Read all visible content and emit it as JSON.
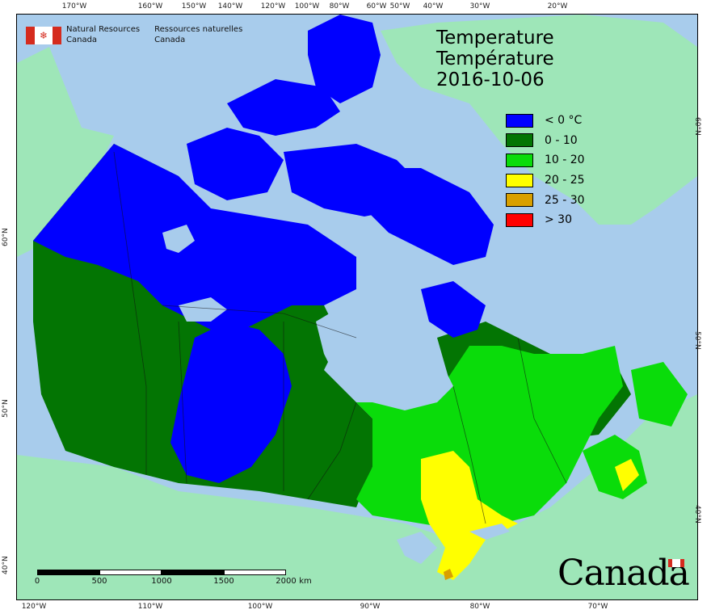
{
  "map": {
    "title_en": "Temperature",
    "title_fr": "Température",
    "date": "2016-10-06"
  },
  "agency": {
    "name_en_line1": "Natural Resources",
    "name_en_line2": "Canada",
    "name_fr_line1": "Ressources naturelles",
    "name_fr_line2": "Canada",
    "flag_icon": "canada-flag-icon"
  },
  "wordmark": {
    "text": "Canada",
    "flag_icon": "canada-flag-icon"
  },
  "legend": [
    {
      "label": "< 0 °C",
      "color": "#0000ff"
    },
    {
      "label": "0 - 10",
      "color": "#037503"
    },
    {
      "label": "10 - 20",
      "color": "#0adc0a"
    },
    {
      "label": "20 - 25",
      "color": "#ffff00"
    },
    {
      "label": "25 - 30",
      "color": "#d9a000"
    },
    {
      "label": "> 30",
      "color": "#ff0000"
    }
  ],
  "graticule": {
    "top": [
      "170°W",
      "160°W",
      "150°W",
      "140°W",
      "120°W",
      "100°W",
      "80°W",
      "60°W",
      "50°W",
      "40°W",
      "30°W",
      "20°W"
    ],
    "bottom": [
      "120°W",
      "110°W",
      "100°W",
      "90°W",
      "80°W",
      "70°W"
    ],
    "left": [
      "60°N",
      "50°N",
      "40°N"
    ],
    "right": [
      "60°N",
      "50°N",
      "40°N"
    ]
  },
  "scale_bar": {
    "labels": [
      "0",
      "500",
      "1000",
      "1500",
      "2000"
    ],
    "unit": "km"
  },
  "colors": {
    "water": "#a8ccec",
    "land_outside": "#9ee6b8"
  }
}
